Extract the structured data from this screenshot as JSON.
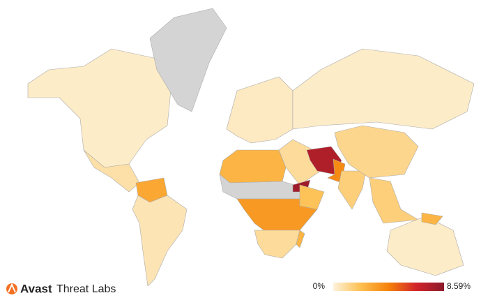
{
  "map": {
    "regions": [
      0.3,
      null,
      0.8,
      3,
      0.6,
      0.4,
      0.3,
      2.5,
      null,
      3.5,
      1,
      1,
      8,
      7.5,
      4,
      1.5,
      1.2,
      1.5,
      0.3,
      2.5,
      2,
      2.5
    ],
    "no_data_color": "#d4d4d4",
    "scale_colors": [
      "#fdf3dc",
      "#fdbf4f",
      "#f5820a",
      "#d2232a",
      "#8b1a2b"
    ],
    "legend": {
      "min": {
        "value": 0,
        "label": "0%"
      },
      "max": {
        "value": 8.59,
        "label": "8.59%"
      }
    }
  },
  "brand": {
    "name": "Avast",
    "product": "Threat Labs"
  }
}
